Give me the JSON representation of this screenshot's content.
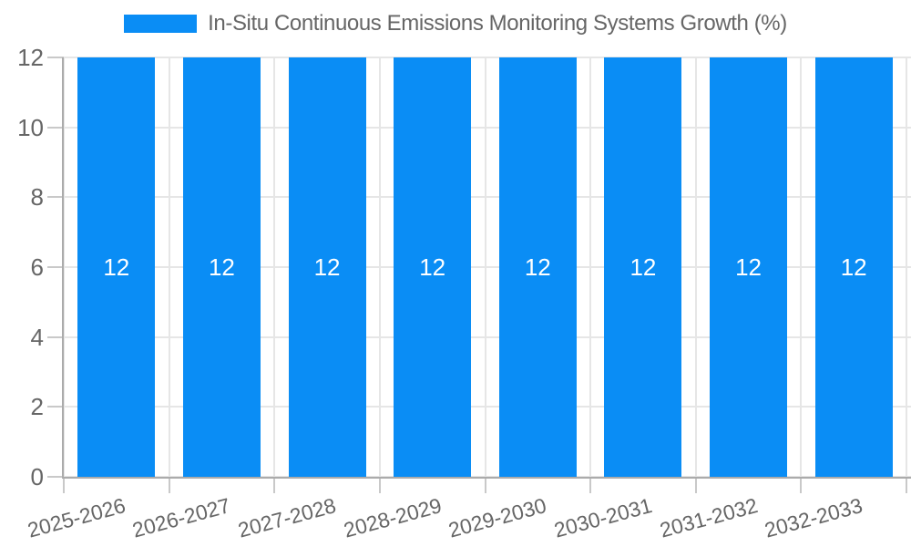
{
  "chart_data": {
    "type": "bar",
    "title": "In-Situ Continuous Emissions Monitoring Systems Growth (%)",
    "categories": [
      "2025-2026",
      "2026-2027",
      "2027-2028",
      "2028-2029",
      "2029-2030",
      "2030-2031",
      "2031-2032",
      "2032-2033"
    ],
    "values": [
      12,
      12,
      12,
      12,
      12,
      12,
      12,
      12
    ],
    "bar_labels": [
      "12",
      "12",
      "12",
      "12",
      "12",
      "12",
      "12",
      "12"
    ],
    "xlabel": "",
    "ylabel": "",
    "ylim": [
      0,
      12
    ],
    "y_ticks": [
      0,
      2,
      4,
      6,
      8,
      10,
      12
    ],
    "grid": true,
    "legend_position": "top",
    "colors": {
      "bar": "#0a8df5",
      "bar_label": "#ffffff",
      "axis_text": "#666666",
      "gridline": "#e6e6e6",
      "tick_mark": "#c9c9c9",
      "axis_line": "#ababab",
      "background": "#ffffff"
    }
  },
  "legend": {
    "label": "In-Situ Continuous Emissions Monitoring Systems Growth (%)"
  }
}
